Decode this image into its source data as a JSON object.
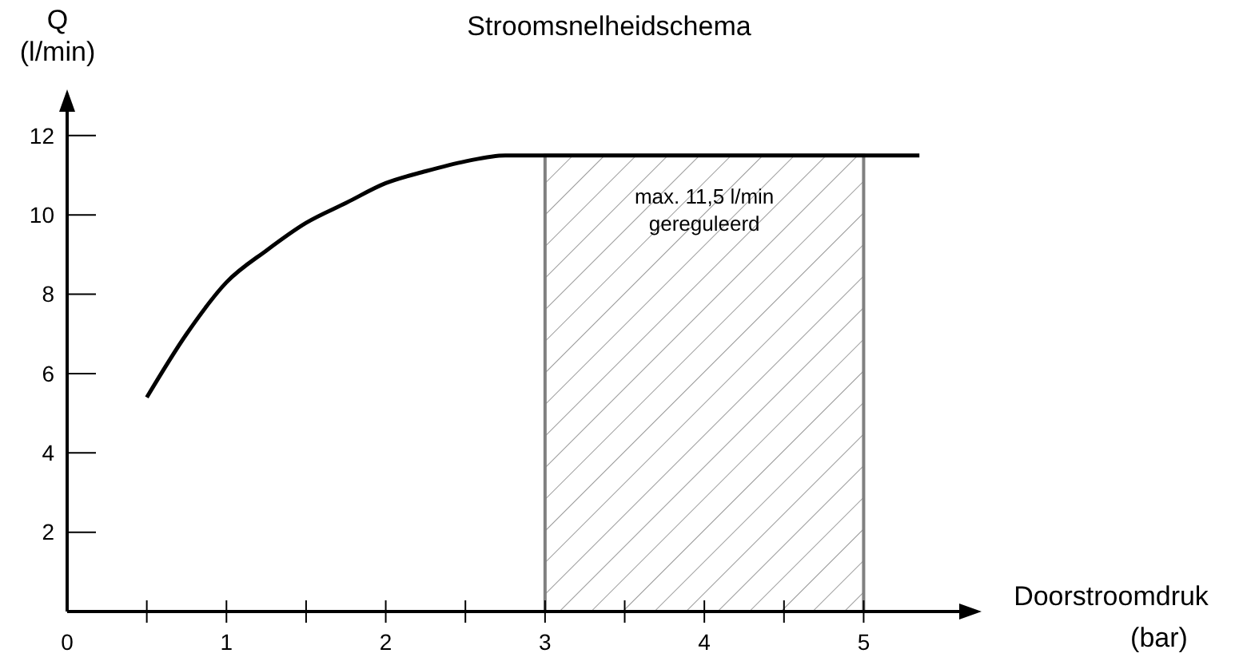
{
  "chart_data": {
    "type": "line",
    "title": "Stroomsnelheidschema",
    "xlabel": "Doorstroomdruk (bar)",
    "ylabel": "Q (l/min)",
    "x": [
      0.5,
      0.75,
      1,
      1.25,
      1.5,
      1.75,
      2,
      2.25,
      2.5,
      2.75,
      3,
      4,
      5,
      5.35
    ],
    "series": [
      {
        "color": "#000000",
        "values": [
          5.4,
          7.0,
          8.3,
          9.1,
          9.8,
          10.3,
          10.8,
          11.1,
          11.35,
          11.5,
          11.5,
          11.5,
          11.5,
          11.5
        ]
      }
    ],
    "xlim": [
      0,
      5.6
    ],
    "ylim": [
      0,
      12.6
    ],
    "xticks": [
      {
        "value": 0,
        "label": "0"
      },
      {
        "value": 0.5,
        "label": null
      },
      1,
      {
        "value": 1.5,
        "label": null
      },
      2,
      {
        "value": 2.5,
        "label": null
      },
      3,
      {
        "value": 3.5,
        "label": null
      },
      4,
      {
        "value": 4.5,
        "label": null
      },
      5
    ],
    "yticks": [
      2,
      4,
      6,
      8,
      10,
      12
    ],
    "bands": [
      {
        "axis": "x",
        "from": 3,
        "to": 5,
        "label": "max. 11,5 l/min gereguleerd",
        "color": "#808080"
      }
    ],
    "grid": false
  }
}
